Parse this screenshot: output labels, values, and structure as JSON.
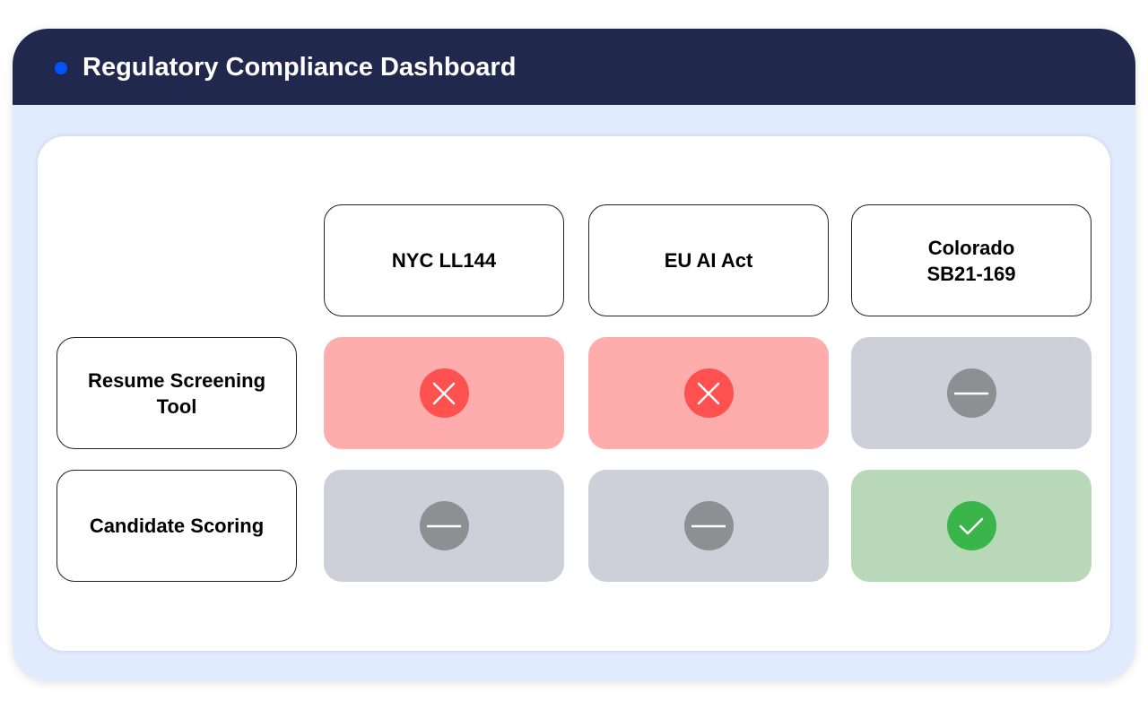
{
  "header": {
    "title": "Regulatory Compliance Dashboard",
    "dot_color": "#0055ff"
  },
  "columns": [
    "NYC LL144",
    "EU AI Act",
    "Colorado SB21-169"
  ],
  "rows": [
    {
      "label": "Resume Screening Tool",
      "cells": [
        {
          "status": "non-compliant",
          "icon": "x-icon"
        },
        {
          "status": "non-compliant",
          "icon": "x-icon"
        },
        {
          "status": "not-applicable",
          "icon": "minus-icon"
        }
      ]
    },
    {
      "label": "Candidate Scoring",
      "cells": [
        {
          "status": "not-applicable",
          "icon": "minus-icon"
        },
        {
          "status": "not-applicable",
          "icon": "minus-icon"
        },
        {
          "status": "compliant",
          "icon": "check-icon"
        }
      ]
    }
  ],
  "colors": {
    "non-compliant": "#fe5150",
    "not-applicable": "#8e8f92",
    "compliant": "#39b54a"
  }
}
